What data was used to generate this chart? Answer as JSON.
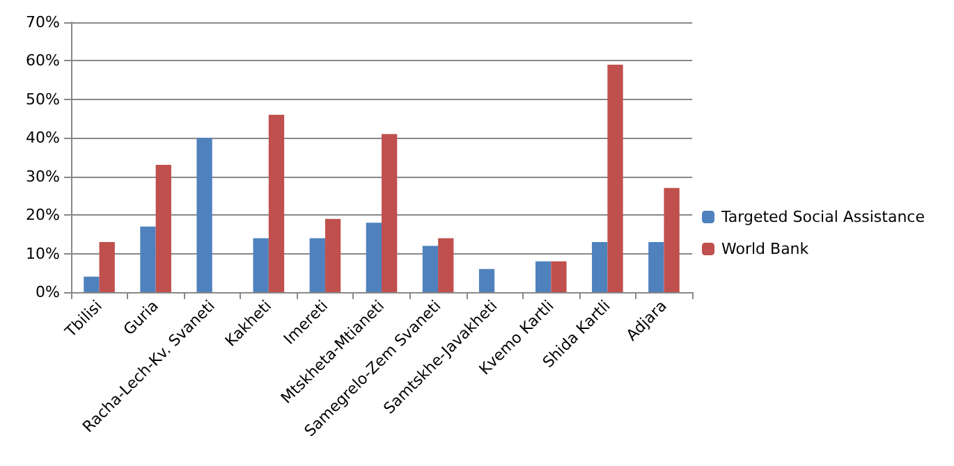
{
  "chart_data": {
    "type": "bar",
    "categories": [
      "Tbilisi",
      "Guria",
      "Racha-Lech-Kv. Svaneti",
      "Kakheti",
      "Imereti",
      "Mtskheta-Mtianeti",
      "Samegrelo-Zem Svaneti",
      "Samtskhe-Javakheti",
      "Kvemo Kartli",
      "Shida Kartli",
      "Adjara"
    ],
    "series": [
      {
        "name": "Targeted Social Assistance",
        "color": "#4f81bd",
        "values": [
          4,
          17,
          40,
          14,
          14,
          18,
          12,
          6,
          8,
          13,
          13
        ]
      },
      {
        "name": "World Bank",
        "color": "#c0504d",
        "values": [
          13,
          33,
          null,
          46,
          19,
          41,
          14,
          null,
          8,
          59,
          27
        ]
      }
    ],
    "ylim": [
      0,
      70
    ],
    "yticks": [
      {
        "value": 0,
        "label": "0%"
      },
      {
        "value": 10,
        "label": "10%"
      },
      {
        "value": 20,
        "label": "20%"
      },
      {
        "value": 30,
        "label": "30%"
      },
      {
        "value": 40,
        "label": "40%"
      },
      {
        "value": 50,
        "label": "50%"
      },
      {
        "value": 60,
        "label": "60%"
      },
      {
        "value": 70,
        "label": "70%"
      }
    ],
    "grid": "y",
    "legend": "right"
  }
}
